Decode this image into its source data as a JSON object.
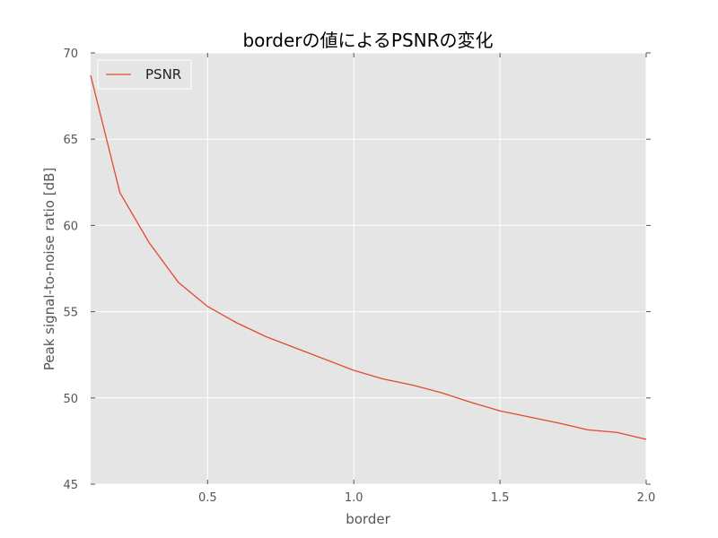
{
  "chart_data": {
    "type": "line",
    "title": "borderの値によるPSNRの変化",
    "xlabel": "border",
    "ylabel": "Peak signal-to-noise ratio [dB]",
    "xlim": [
      0.1,
      2.0
    ],
    "ylim": [
      45,
      70
    ],
    "xticks": [
      0.5,
      1.0,
      1.5,
      2.0
    ],
    "xtick_labels": [
      "0.5",
      "1.0",
      "1.5",
      "2.0"
    ],
    "yticks": [
      45,
      50,
      55,
      60,
      65,
      70
    ],
    "ytick_labels": [
      "45",
      "50",
      "55",
      "60",
      "65",
      "70"
    ],
    "grid": true,
    "legend_position": "top-left",
    "series": [
      {
        "name": "PSNR",
        "color": "#e24a33",
        "x": [
          0.1,
          0.2,
          0.3,
          0.4,
          0.5,
          0.6,
          0.7,
          0.8,
          0.9,
          1.0,
          1.1,
          1.2,
          1.3,
          1.4,
          1.5,
          1.6,
          1.7,
          1.8,
          1.9,
          2.0
        ],
        "y": [
          68.7,
          61.9,
          59.0,
          56.7,
          55.3,
          54.35,
          53.55,
          52.9,
          52.25,
          51.6,
          51.1,
          50.75,
          50.3,
          49.75,
          49.25,
          48.9,
          48.55,
          48.15,
          48.0,
          47.6
        ]
      }
    ]
  }
}
